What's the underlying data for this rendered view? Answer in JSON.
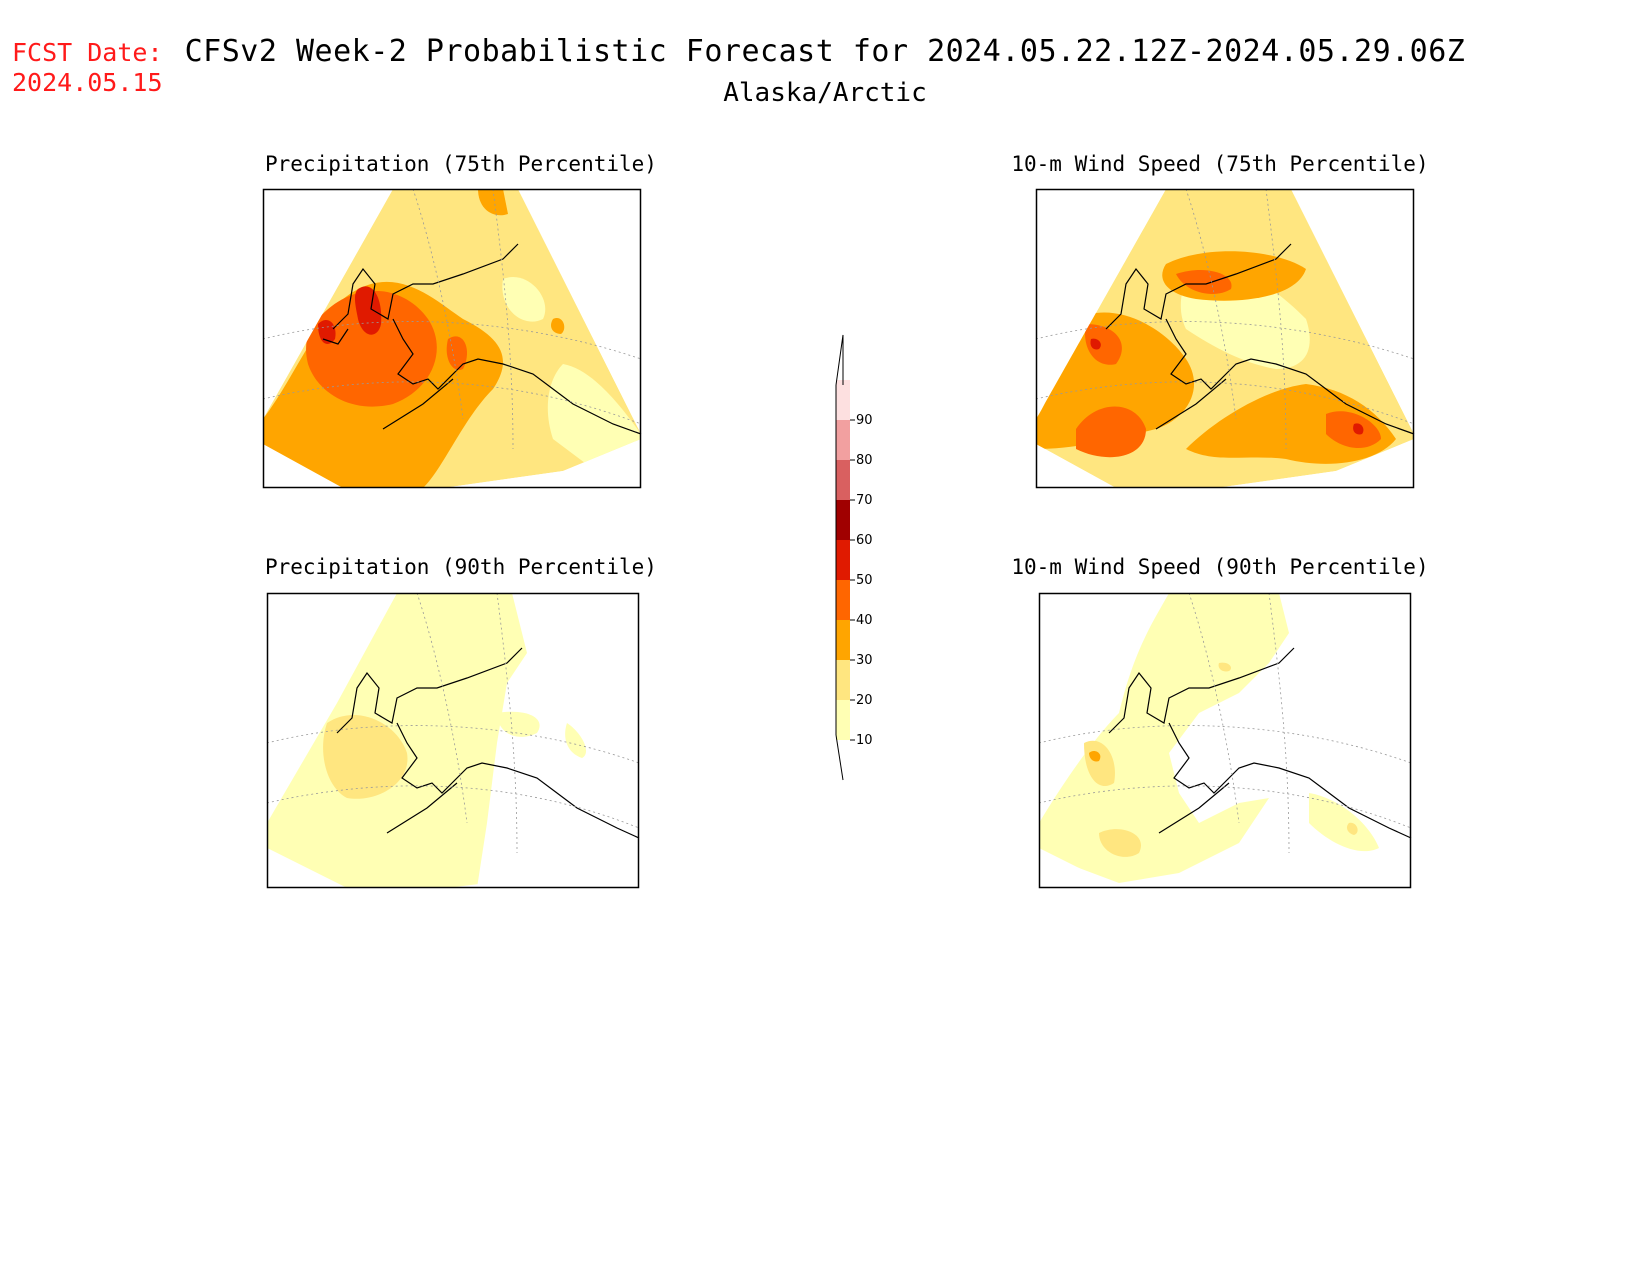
{
  "header": {
    "fcst_date_label": "FCST Date:",
    "fcst_date_value": "2024.05.15",
    "title": "CFSv2 Week-2 Probabilistic Forecast for 2024.05.22.12Z-2024.05.29.06Z",
    "region": "Alaska/Arctic"
  },
  "panels": [
    {
      "id": "precip75",
      "title": "Precipitation (75th Percentile)"
    },
    {
      "id": "wind75",
      "title": "10-m Wind Speed (75th Percentile)"
    },
    {
      "id": "precip90",
      "title": "Precipitation (90th Percentile)"
    },
    {
      "id": "wind90",
      "title": "10-m Wind Speed (90th Percentile)"
    }
  ],
  "colorbar": {
    "ticks": [
      "10",
      "20",
      "30",
      "40",
      "50",
      "60",
      "70",
      "80",
      "90"
    ],
    "colors": [
      "#ffffb4",
      "#ffe680",
      "#ffa500",
      "#ff6600",
      "#e01a00",
      "#a00000",
      "#d96060",
      "#f2a0a0",
      "#fde0e0"
    ]
  }
}
